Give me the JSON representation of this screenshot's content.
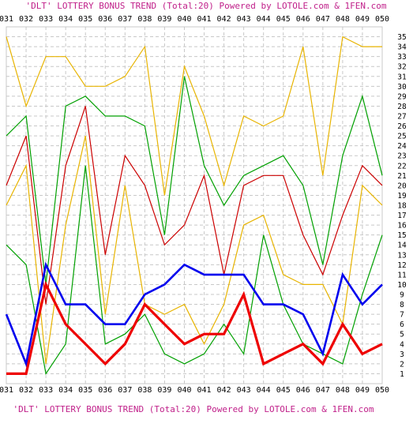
{
  "chart_data": {
    "type": "line",
    "title": "'DLT' LOTTERY BONUS TREND (Total:20)  Powered by LOTOLE.com & 1FEN.com",
    "footer": "'DLT' LOTTERY BONUS TREND (Total:20)  Powered by LOTOLE.com & 1FEN.com",
    "xlabel": "",
    "ylabel": "",
    "x": [
      "031",
      "032",
      "033",
      "034",
      "035",
      "036",
      "037",
      "038",
      "039",
      "040",
      "041",
      "042",
      "043",
      "044",
      "045",
      "046",
      "047",
      "048",
      "049",
      "050"
    ],
    "y_ticks": [
      "1",
      "2",
      "3",
      "4",
      "5",
      "6",
      "7",
      "8",
      "9",
      "10",
      "11",
      "12",
      "13",
      "14",
      "15",
      "16",
      "17",
      "18",
      "19",
      "20",
      "21",
      "22",
      "23",
      "24",
      "25",
      "26",
      "27",
      "28",
      "29",
      "30",
      "31",
      "32",
      "33",
      "34",
      "35"
    ],
    "ylim": [
      0,
      36
    ],
    "grid": true,
    "series": [
      {
        "color": "#e8b400",
        "width": 1.2,
        "values": [
          35,
          28,
          33,
          33,
          30,
          30,
          31,
          34,
          19,
          32,
          27,
          20,
          27,
          26,
          27,
          34,
          21,
          35,
          34,
          34
        ]
      },
      {
        "color": "#e8b400",
        "width": 1.2,
        "values": [
          18,
          22,
          2,
          16,
          25,
          7,
          20,
          8,
          7,
          8,
          4,
          8,
          16,
          17,
          11,
          10,
          10,
          6,
          20,
          18
        ]
      },
      {
        "color": "#00a000",
        "width": 1.2,
        "values": [
          25,
          27,
          10,
          28,
          29,
          27,
          27,
          26,
          15,
          31,
          22,
          18,
          21,
          22,
          23,
          20,
          12,
          23,
          29,
          21
        ]
      },
      {
        "color": "#00a000",
        "width": 1.2,
        "values": [
          14,
          12,
          1,
          4,
          22,
          4,
          5,
          7,
          3,
          2,
          3,
          6,
          3,
          15,
          8,
          4,
          3,
          2,
          9,
          15
        ]
      },
      {
        "color": "#cc0000",
        "width": 1.2,
        "values": [
          20,
          25,
          8,
          22,
          28,
          13,
          23,
          20,
          14,
          16,
          21,
          11,
          20,
          21,
          21,
          15,
          11,
          17,
          22,
          20
        ]
      },
      {
        "color": "#0000ee",
        "width": 2.6,
        "values": [
          7,
          2,
          12,
          8,
          8,
          6,
          6,
          9,
          10,
          12,
          11,
          11,
          11,
          8,
          8,
          7,
          3,
          11,
          8,
          10
        ]
      },
      {
        "color": "#ee0000",
        "width": 3.2,
        "values": [
          1,
          1,
          10,
          6,
          4,
          2,
          4,
          8,
          6,
          4,
          5,
          5,
          9,
          2,
          3,
          4,
          2,
          6,
          3,
          4
        ]
      }
    ],
    "colors": {
      "background": "#ffffff",
      "grid": "#c8c8c8",
      "title": "#c0208a",
      "axis": "#000000"
    }
  }
}
